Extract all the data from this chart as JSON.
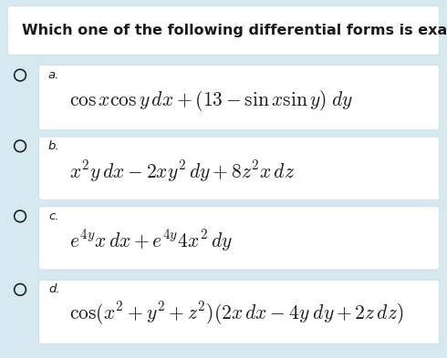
{
  "question": "Which one of the following differential forms is exact?",
  "background_color": "#d6e8f0",
  "box_color": "#ffffff",
  "text_color": "#1a1a1a",
  "options": [
    {
      "label": "a.",
      "formula": "$\\cos x\\cos y\\,dx+(13-\\sin x\\sin y)\\;dy$"
    },
    {
      "label": "b.",
      "formula": "$x^2y\\,dx-2xy^2\\,dy+8z^2x\\,dz$"
    },
    {
      "label": "c.",
      "formula": "$e^{4y}x\\,dx+e^{4y}4x^2\\,dy$"
    },
    {
      "label": "d.",
      "formula": "$\\cos(x^2+y^2+z^2)(2x\\,dx-4y\\;dy+2z\\,dz)$"
    }
  ],
  "circle_color": "#222222",
  "question_fontsize": 11.5,
  "label_fontsize": 9.5,
  "formula_fontsize": 15.5,
  "fig_width": 4.9,
  "fig_height": 3.93,
  "dpi": 100
}
